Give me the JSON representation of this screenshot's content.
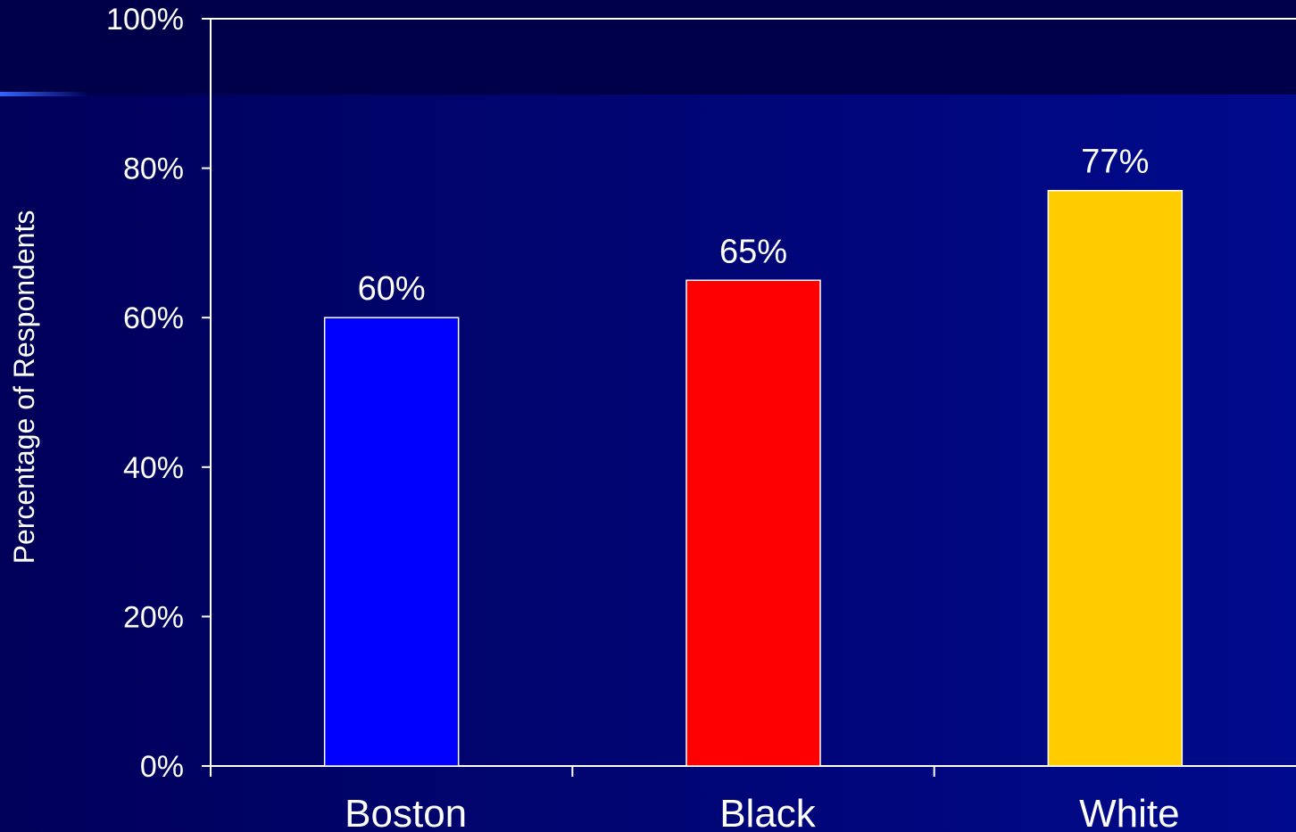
{
  "chart_data": {
    "type": "bar",
    "categories": [
      "Boston",
      "Black",
      "White"
    ],
    "values": [
      60,
      65,
      77
    ],
    "value_labels": [
      "60%",
      "65%",
      "77%"
    ],
    "ylabel": "Percentage of Respondents",
    "xlabel": "",
    "ylim": [
      0,
      100
    ],
    "yticks": [
      0,
      20,
      40,
      60,
      80,
      100
    ],
    "ytick_labels": [
      "0%",
      "20%",
      "40%",
      "60%",
      "80%",
      "100%"
    ],
    "bar_colors": [
      "#0000ff",
      "#ff0000",
      "#ffcc00"
    ],
    "grid": false,
    "legend": "none"
  },
  "colors": {
    "background": "#000060",
    "header_band": "#00004d",
    "accent_line": "#3366ff",
    "axis": "#ffffff",
    "text": "#ffffff"
  }
}
